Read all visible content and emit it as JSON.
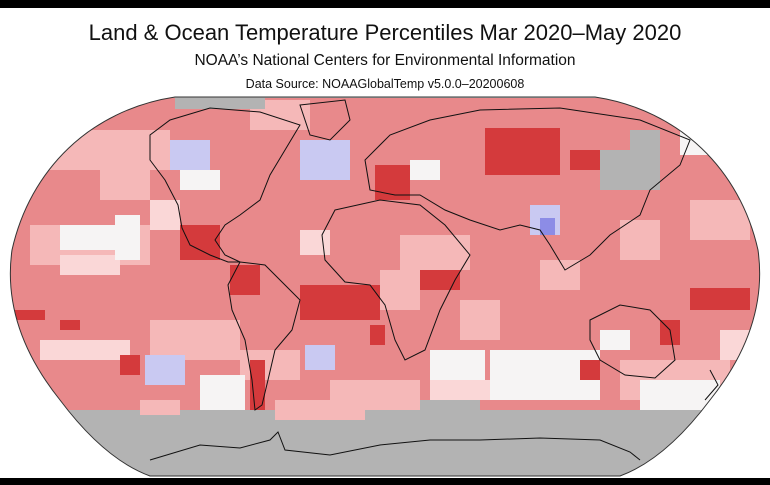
{
  "title": "Land & Ocean Temperature Percentiles Mar 2020–May 2020",
  "subtitle": "NOAA’s National Centers for Environmental Information",
  "source": "Data Source: NOAAGlobalTemp v5.0.0–20200608",
  "map": {
    "projection": "Robinson",
    "colors": {
      "base_warm": "#e8898b",
      "much_warmer": "#d43a3c",
      "light_warm": "#f5b8b8",
      "very_light_warm": "#fad7d7",
      "near_average": "#f6f4f4",
      "cool": "#c9c9f2",
      "much_cooler": "#8c8ce6",
      "no_data": "#b3b3b3"
    }
  }
}
